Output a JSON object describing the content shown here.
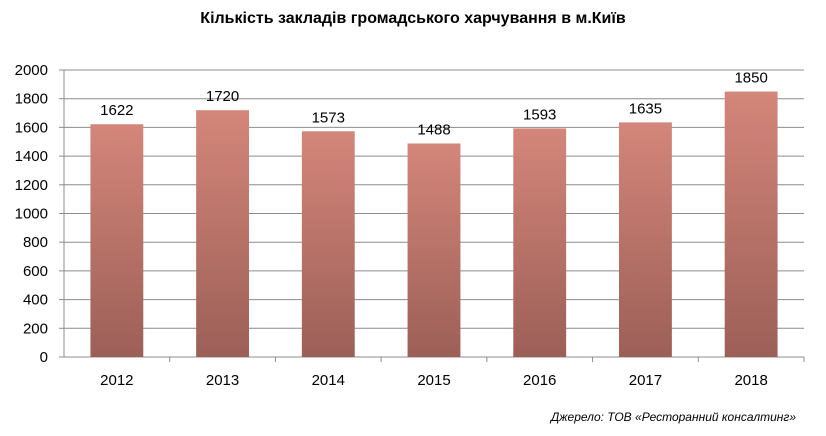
{
  "chart_data": {
    "type": "bar",
    "title": "Кількість закладів громадського харчування в м.Київ",
    "categories": [
      "2012",
      "2013",
      "2014",
      "2015",
      "2016",
      "2017",
      "2018"
    ],
    "values": [
      1622,
      1720,
      1573,
      1488,
      1593,
      1635,
      1850
    ],
    "ylim": [
      0,
      2000
    ],
    "yticks": [
      0,
      200,
      400,
      600,
      800,
      1000,
      1200,
      1400,
      1600,
      1800,
      2000
    ],
    "xlabel": "",
    "ylabel": "",
    "grid": true,
    "legend": "none",
    "bar_color_top": "#d4867a",
    "bar_color_bottom": "#9c5f57"
  },
  "source_note": "Джерело: ТОВ «Ресторанний консалтинг»"
}
